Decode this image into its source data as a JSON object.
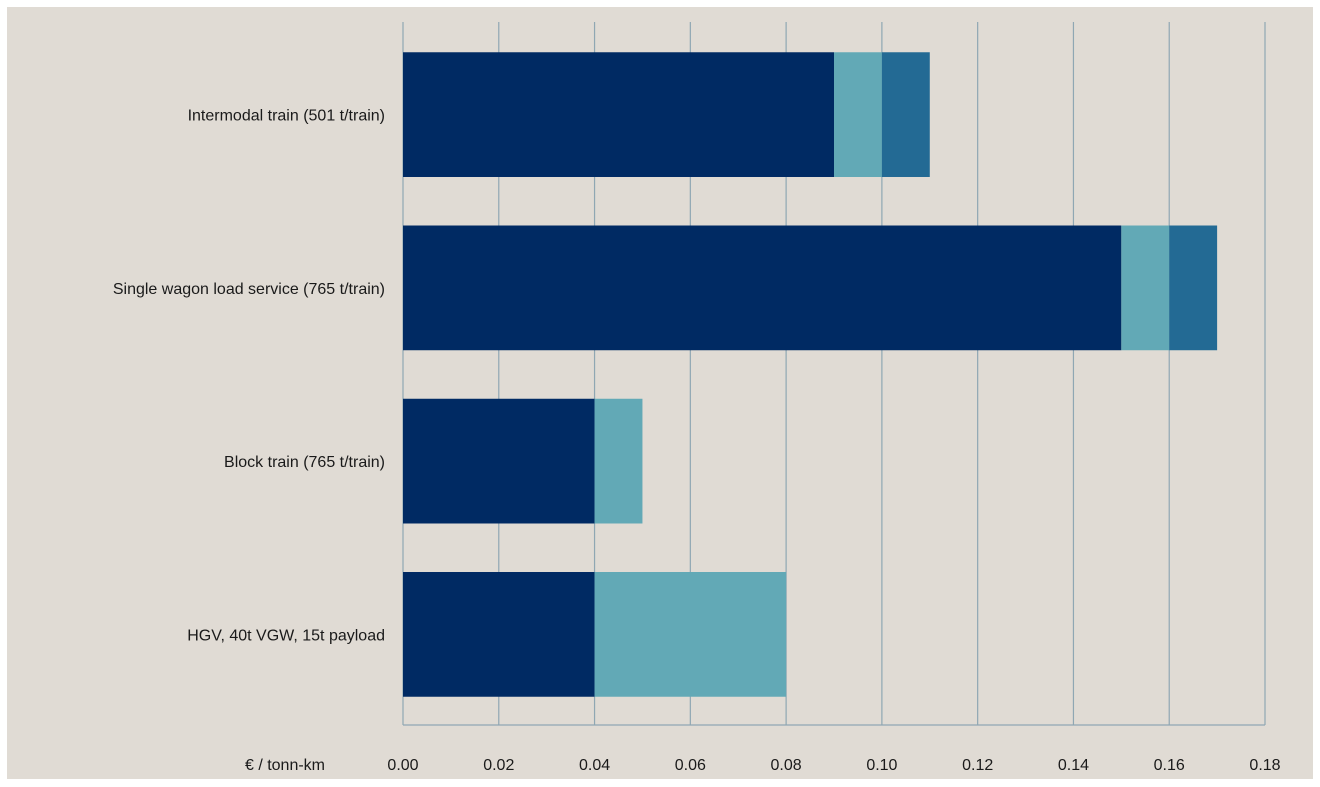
{
  "chart_data": {
    "type": "bar",
    "orientation": "horizontal",
    "stacked": true,
    "title": "",
    "xlabel": "€ / tonn-km",
    "ylabel": "",
    "xlim": [
      0,
      0.18
    ],
    "x_ticks": [
      "0.00",
      "0.02",
      "0.04",
      "0.06",
      "0.08",
      "0.10",
      "0.12",
      "0.14",
      "0.16",
      "0.18"
    ],
    "grid": "vertical",
    "legend": "none",
    "categories": [
      "Intermodal train (501 t/train)",
      "Single wagon load service (765 t/train)",
      "Block train (765 t/train)",
      "HGV, 40t VGW, 15t payload"
    ],
    "series": [
      {
        "values": [
          0.09,
          0.15,
          0.04,
          0.04
        ],
        "color": "#002a63"
      },
      {
        "values": [
          0.01,
          0.01,
          0.01,
          0.04
        ],
        "color": "#62a9b6"
      },
      {
        "values": [
          0.01,
          0.01,
          0,
          0
        ],
        "color": "#236a94"
      }
    ],
    "colors": {
      "background": "#e0dbd4",
      "grid": "#8fa7b3"
    }
  }
}
